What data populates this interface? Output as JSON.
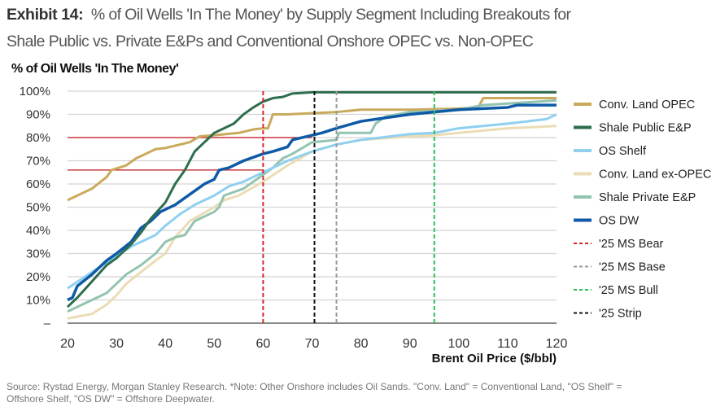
{
  "header": {
    "exhibit_label": "Exhibit 14:",
    "title_line1": "% of Oil Wells 'In The Money' by Supply Segment Including Breakouts for",
    "title_line2": "Shale Public vs. Private E&Ps and Conventional Onshore OPEC vs. Non-OPEC"
  },
  "footer": {
    "line1": "Source: Rystad Energy, Morgan Stanley Research. *Note: Other Onshore includes Oil Sands. \"Conv. Land\" = Conventional Land, \"OS Shelf\" =",
    "line2": "Offshore Shelf, \"OS DW\" = Offshore Deepwater."
  },
  "chart_data": {
    "type": "line",
    "title": "% of Oil Wells 'In The Money'",
    "xlabel": "Brent Oil Price ($/bbl)",
    "ylabel": "% of Oil Wells 'In The Money'",
    "xlim": [
      20,
      120
    ],
    "ylim": [
      0,
      100
    ],
    "xticks": [
      "20",
      "30",
      "40",
      "50",
      "60",
      "70",
      "80",
      "90",
      "100",
      "110",
      "120"
    ],
    "yticks": [
      "–",
      "10%",
      "20%",
      "30%",
      "40%",
      "50%",
      "60%",
      "70%",
      "80%",
      "90%",
      "100%"
    ],
    "grid": "horizontal",
    "legend_position": "right",
    "series": [
      {
        "name": "Conv. Land OPEC",
        "color": "#C9A95C",
        "width": 3,
        "points": [
          [
            20,
            53
          ],
          [
            22,
            55
          ],
          [
            25,
            58
          ],
          [
            28,
            63
          ],
          [
            29,
            66
          ],
          [
            32,
            68
          ],
          [
            34,
            71
          ],
          [
            36,
            73
          ],
          [
            38,
            75
          ],
          [
            40,
            75.5
          ],
          [
            45,
            78
          ],
          [
            47,
            80.5
          ],
          [
            50,
            81
          ],
          [
            55,
            82
          ],
          [
            58,
            83.5
          ],
          [
            60,
            84
          ],
          [
            61,
            84
          ],
          [
            62,
            90
          ],
          [
            65,
            90
          ],
          [
            70,
            90.5
          ],
          [
            75,
            91
          ],
          [
            80,
            92
          ],
          [
            90,
            92
          ],
          [
            100,
            92.5
          ],
          [
            104,
            93
          ],
          [
            105,
            97
          ],
          [
            110,
            97
          ],
          [
            120,
            97
          ]
        ]
      },
      {
        "name": "Shale Public E&P",
        "color": "#2E6E4E",
        "width": 3,
        "points": [
          [
            20,
            7
          ],
          [
            22,
            11
          ],
          [
            25,
            18
          ],
          [
            28,
            25
          ],
          [
            30,
            28
          ],
          [
            33,
            34
          ],
          [
            35,
            39
          ],
          [
            37,
            45
          ],
          [
            40,
            52
          ],
          [
            42,
            60
          ],
          [
            44,
            66
          ],
          [
            46,
            74
          ],
          [
            48,
            78
          ],
          [
            50,
            82
          ],
          [
            52,
            84
          ],
          [
            54,
            86
          ],
          [
            56,
            90
          ],
          [
            58,
            93
          ],
          [
            60,
            95.5
          ],
          [
            62,
            97
          ],
          [
            64,
            97.5
          ],
          [
            66,
            99
          ],
          [
            70,
            99.5
          ],
          [
            120,
            99.5
          ]
        ]
      },
      {
        "name": "OS Shelf",
        "color": "#8FD0F0",
        "width": 3,
        "points": [
          [
            20,
            15
          ],
          [
            25,
            22
          ],
          [
            30,
            29
          ],
          [
            33,
            33
          ],
          [
            36,
            36
          ],
          [
            38,
            38
          ],
          [
            40,
            42
          ],
          [
            43,
            47
          ],
          [
            46,
            51
          ],
          [
            50,
            55
          ],
          [
            53,
            59
          ],
          [
            56,
            61
          ],
          [
            60,
            65
          ],
          [
            65,
            70
          ],
          [
            70,
            74
          ],
          [
            75,
            77
          ],
          [
            80,
            79
          ],
          [
            90,
            81.5
          ],
          [
            95,
            82
          ],
          [
            100,
            84
          ],
          [
            110,
            86
          ],
          [
            118,
            88
          ],
          [
            120,
            90
          ]
        ]
      },
      {
        "name": "Conv. Land ex-OPEC",
        "color": "#EADCB4",
        "width": 3,
        "points": [
          [
            20,
            2
          ],
          [
            25,
            4
          ],
          [
            28,
            8
          ],
          [
            30,
            12
          ],
          [
            32,
            17
          ],
          [
            35,
            22
          ],
          [
            38,
            27
          ],
          [
            40,
            30
          ],
          [
            42,
            37
          ],
          [
            45,
            44
          ],
          [
            50,
            50
          ],
          [
            52,
            53
          ],
          [
            55,
            55
          ],
          [
            60,
            61
          ],
          [
            65,
            68
          ],
          [
            70,
            74
          ],
          [
            75,
            77
          ],
          [
            80,
            79
          ],
          [
            90,
            80.5
          ],
          [
            95,
            81
          ],
          [
            100,
            82
          ],
          [
            110,
            84
          ],
          [
            120,
            85
          ]
        ]
      },
      {
        "name": "Shale Private E&P",
        "color": "#93C4B0",
        "width": 3,
        "points": [
          [
            20,
            5
          ],
          [
            25,
            10
          ],
          [
            28,
            13
          ],
          [
            30,
            17
          ],
          [
            32,
            21
          ],
          [
            35,
            25
          ],
          [
            38,
            30
          ],
          [
            40,
            35
          ],
          [
            42,
            37
          ],
          [
            44,
            38
          ],
          [
            46,
            44
          ],
          [
            50,
            48
          ],
          [
            51,
            50
          ],
          [
            52,
            55
          ],
          [
            56,
            58
          ],
          [
            60,
            64
          ],
          [
            62,
            67
          ],
          [
            64,
            71
          ],
          [
            66,
            73
          ],
          [
            70,
            78
          ],
          [
            75,
            79
          ],
          [
            75.5,
            82
          ],
          [
            82,
            82
          ],
          [
            83,
            86
          ],
          [
            85,
            89
          ],
          [
            90,
            91
          ],
          [
            95,
            91.5
          ],
          [
            100,
            92
          ],
          [
            105,
            94
          ],
          [
            120,
            96
          ]
        ]
      },
      {
        "name": "OS DW",
        "color": "#0E5AA7",
        "width": 3.5,
        "points": [
          [
            20,
            10
          ],
          [
            21,
            11
          ],
          [
            22,
            16
          ],
          [
            25,
            21
          ],
          [
            28,
            27
          ],
          [
            30,
            30
          ],
          [
            33,
            35
          ],
          [
            35,
            41
          ],
          [
            37,
            44
          ],
          [
            39,
            48
          ],
          [
            42,
            51
          ],
          [
            44,
            54
          ],
          [
            46,
            57
          ],
          [
            48,
            60
          ],
          [
            50,
            62
          ],
          [
            51,
            66
          ],
          [
            53,
            67
          ],
          [
            56,
            70
          ],
          [
            60,
            73
          ],
          [
            62,
            74
          ],
          [
            65,
            76
          ],
          [
            66,
            79
          ],
          [
            70,
            81
          ],
          [
            72,
            82
          ],
          [
            75,
            84
          ],
          [
            80,
            87
          ],
          [
            85,
            88.5
          ],
          [
            90,
            90
          ],
          [
            95,
            91
          ],
          [
            100,
            92
          ],
          [
            110,
            93
          ],
          [
            112,
            94
          ],
          [
            120,
            94
          ]
        ]
      }
    ],
    "vertical_lines": [
      {
        "name": "'25 MS Bear",
        "x": 60,
        "color": "#D7262B"
      },
      {
        "name": "'25 MS Base",
        "x": 75,
        "color": "#999999"
      },
      {
        "name": "'25 MS Bull",
        "x": 95,
        "color": "#2DBE5A"
      },
      {
        "name": "'25 Strip",
        "x": 70.5,
        "color": "#111111"
      }
    ],
    "reference_lines": [
      {
        "y": 80,
        "x_from": 20,
        "x_to": 70,
        "color": "#C0141B"
      },
      {
        "y": 66,
        "x_from": 20,
        "x_to": 60,
        "color": "#C0141B"
      }
    ],
    "legend_order": [
      "Conv. Land OPEC",
      "Shale Public E&P",
      "OS Shelf",
      "Conv. Land ex-OPEC",
      "Shale Private E&P",
      "OS DW",
      "'25 MS Bear",
      "'25 MS Base",
      "'25 MS Bull",
      "'25 Strip"
    ]
  }
}
